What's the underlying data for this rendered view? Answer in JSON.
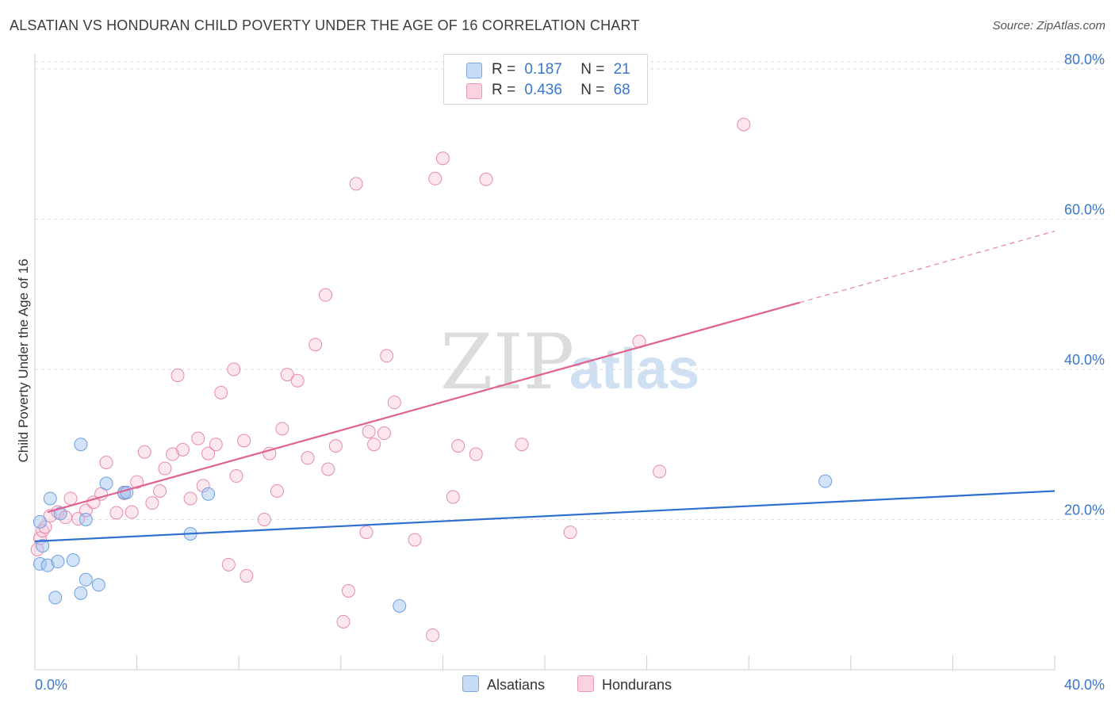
{
  "title": "ALSATIAN VS HONDURAN CHILD POVERTY UNDER THE AGE OF 16 CORRELATION CHART",
  "source": "Source: ZipAtlas.com",
  "watermark": {
    "zip": "ZIP",
    "atlas": "atlas"
  },
  "legend": {
    "rows": [
      {
        "r_label": "R =",
        "r_value": "0.187",
        "n_label": "N =",
        "n_value": "21",
        "color": "#a9c8f0",
        "stroke": "#7ea7dd"
      },
      {
        "r_label": "R =",
        "r_value": "0.436",
        "n_label": "N =",
        "n_value": "68",
        "color": "#f7bfd0",
        "stroke": "#e89ab4"
      }
    ],
    "bottom": [
      {
        "label": "Alsatians",
        "color": "#c5dbf6",
        "stroke": "#7ea7dd"
      },
      {
        "label": "Hondurans",
        "color": "#fbd3e0",
        "stroke": "#e89ab4"
      }
    ]
  },
  "chart_data": {
    "type": "scatter",
    "title": "ALSATIAN VS HONDURAN CHILD POVERTY UNDER THE AGE OF 16 CORRELATION CHART",
    "xlabel": "",
    "ylabel": "Child Poverty Under the Age of 16",
    "xlim": [
      0,
      40
    ],
    "ylim": [
      0,
      82
    ],
    "x_tick_labels": [
      "0.0%",
      "40.0%"
    ],
    "y_ticks": [
      20,
      40,
      60,
      80
    ],
    "y_tick_labels": [
      "20.0%",
      "40.0%",
      "60.0%",
      "80.0%"
    ],
    "grid": true,
    "series": [
      {
        "name": "Alsatians",
        "color": "#6a9fe0",
        "fill": "rgba(157,192,238,0.45)",
        "trend": {
          "x0": 0,
          "y0": 17.1,
          "x1": 40,
          "y1": 23.8,
          "color": "#2f6fd0"
        },
        "points": [
          [
            0.2,
            19.7
          ],
          [
            0.6,
            22.8
          ],
          [
            1.0,
            20.8
          ],
          [
            0.3,
            16.5
          ],
          [
            0.2,
            14.1
          ],
          [
            0.5,
            13.9
          ],
          [
            0.9,
            14.4
          ],
          [
            1.5,
            14.6
          ],
          [
            2.0,
            12.0
          ],
          [
            2.5,
            11.3
          ],
          [
            0.8,
            9.6
          ],
          [
            1.8,
            10.2
          ],
          [
            1.8,
            30.0
          ],
          [
            2.8,
            24.8
          ],
          [
            3.5,
            23.6
          ],
          [
            3.6,
            23.6
          ],
          [
            2.0,
            20.0
          ],
          [
            6.1,
            18.1
          ],
          [
            6.8,
            23.4
          ],
          [
            14.3,
            8.5
          ],
          [
            31.0,
            25.1
          ]
        ]
      },
      {
        "name": "Hondurans",
        "color": "#e68aaa",
        "fill": "rgba(247,185,205,0.35)",
        "trend": {
          "x0": 0.5,
          "y0": 21.0,
          "x1": 30.0,
          "y1": 48.9,
          "dash_x1": 40,
          "dash_y1": 58.4,
          "color": "#e0628e"
        },
        "points": [
          [
            0.1,
            16.0
          ],
          [
            0.2,
            17.5
          ],
          [
            0.3,
            18.5
          ],
          [
            0.6,
            20.5
          ],
          [
            0.9,
            21.0
          ],
          [
            1.4,
            22.8
          ],
          [
            1.7,
            20.1
          ],
          [
            2.0,
            21.2
          ],
          [
            2.3,
            22.3
          ],
          [
            2.6,
            23.4
          ],
          [
            2.8,
            27.6
          ],
          [
            3.2,
            20.9
          ],
          [
            3.5,
            23.5
          ],
          [
            3.8,
            21.0
          ],
          [
            4.0,
            25.0
          ],
          [
            4.3,
            29.0
          ],
          [
            4.6,
            22.2
          ],
          [
            4.9,
            23.8
          ],
          [
            5.1,
            26.8
          ],
          [
            5.4,
            28.7
          ],
          [
            5.6,
            39.2
          ],
          [
            5.8,
            29.3
          ],
          [
            6.1,
            22.8
          ],
          [
            6.4,
            30.8
          ],
          [
            6.6,
            24.5
          ],
          [
            6.8,
            28.8
          ],
          [
            7.1,
            30.0
          ],
          [
            7.3,
            36.9
          ],
          [
            7.6,
            14.0
          ],
          [
            7.8,
            40.0
          ],
          [
            7.9,
            25.8
          ],
          [
            8.2,
            30.5
          ],
          [
            8.3,
            12.5
          ],
          [
            9.0,
            20.0
          ],
          [
            9.2,
            28.8
          ],
          [
            9.5,
            23.8
          ],
          [
            9.7,
            32.1
          ],
          [
            9.9,
            39.3
          ],
          [
            10.3,
            38.5
          ],
          [
            10.7,
            28.2
          ],
          [
            11.0,
            43.3
          ],
          [
            11.4,
            49.9
          ],
          [
            11.5,
            26.7
          ],
          [
            11.8,
            29.8
          ],
          [
            12.1,
            6.4
          ],
          [
            12.3,
            10.5
          ],
          [
            12.6,
            64.7
          ],
          [
            13.0,
            18.3
          ],
          [
            13.1,
            31.7
          ],
          [
            13.3,
            30.0
          ],
          [
            13.7,
            31.5
          ],
          [
            13.8,
            41.8
          ],
          [
            14.1,
            35.6
          ],
          [
            14.9,
            17.3
          ],
          [
            15.6,
            4.6
          ],
          [
            15.7,
            65.4
          ],
          [
            16.0,
            68.1
          ],
          [
            16.4,
            23.0
          ],
          [
            16.6,
            29.8
          ],
          [
            17.3,
            28.7
          ],
          [
            17.7,
            65.3
          ],
          [
            19.1,
            30.0
          ],
          [
            21.0,
            18.3
          ],
          [
            23.7,
            43.7
          ],
          [
            24.5,
            26.4
          ],
          [
            27.8,
            72.6
          ],
          [
            0.4,
            19.0
          ],
          [
            1.2,
            20.3
          ]
        ]
      }
    ]
  }
}
